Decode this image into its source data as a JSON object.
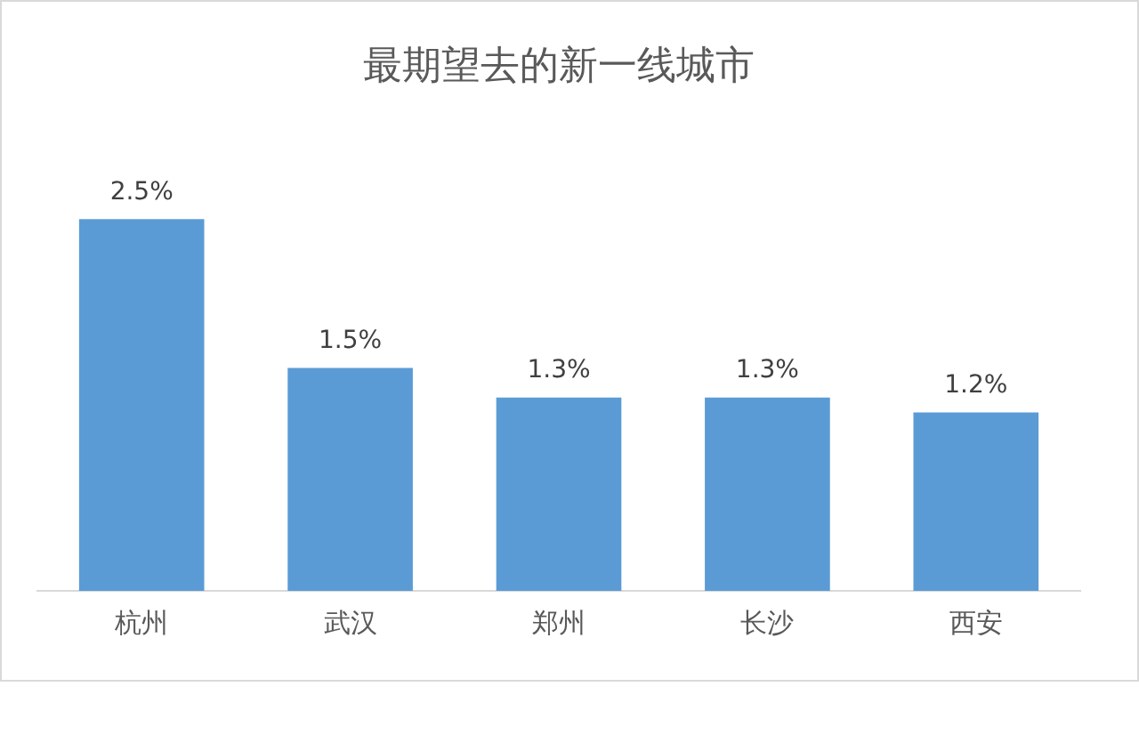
{
  "chart_data": {
    "type": "bar",
    "title": "最期望去的新一线城市",
    "categories": [
      "杭州",
      "武汉",
      "郑州",
      "长沙",
      "西安"
    ],
    "values": [
      2.5,
      1.5,
      1.3,
      1.3,
      1.2
    ],
    "value_labels": [
      "2.5%",
      "1.5%",
      "1.3%",
      "1.3%",
      "1.2%"
    ],
    "color": "#5b9bd5",
    "grid": false,
    "legend": false
  }
}
